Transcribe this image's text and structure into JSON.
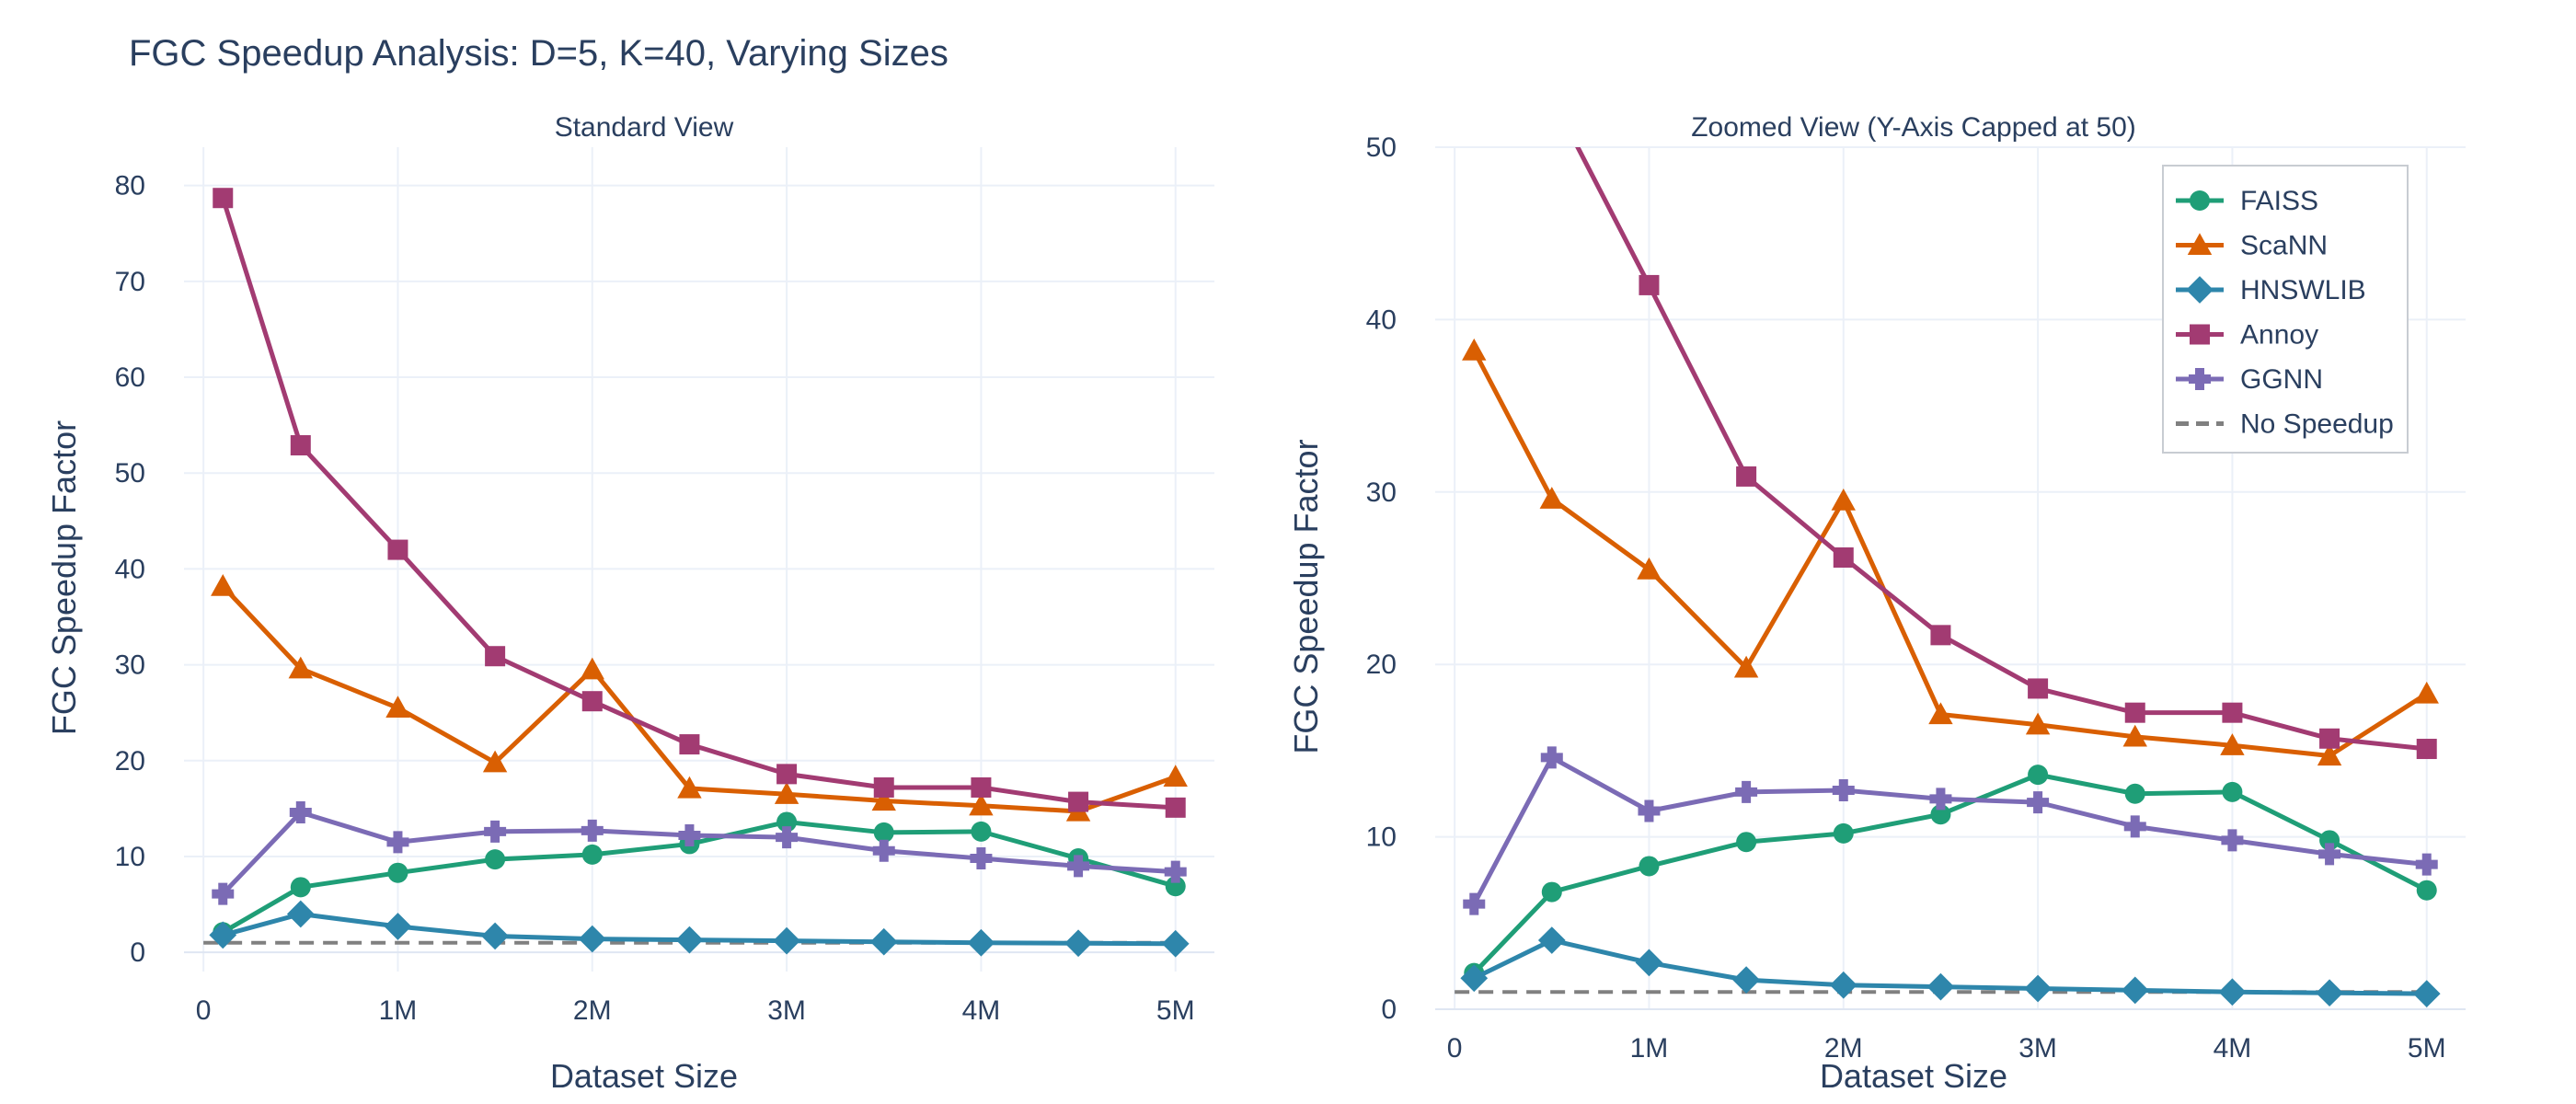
{
  "title": "FGC Speedup Analysis: D=5, K=40, Varying Sizes",
  "chart_data": [
    {
      "type": "line",
      "title": "Standard View",
      "xlabel": "Dataset Size",
      "ylabel": "FGC Speedup Factor",
      "xlim": [
        -0.1,
        5.2
      ],
      "ylim": [
        -2,
        84
      ],
      "xticks": [
        0,
        1,
        2,
        3,
        4,
        5
      ],
      "xtick_labels": [
        "0",
        "1M",
        "2M",
        "3M",
        "4M",
        "5M"
      ],
      "yticks": [
        0,
        10,
        20,
        30,
        40,
        50,
        60,
        70,
        80
      ],
      "ytick_labels": [
        "0",
        "10",
        "20",
        "30",
        "40",
        "50",
        "60",
        "70",
        "80"
      ],
      "legend": false
    },
    {
      "type": "line",
      "title": "Zoomed View (Y-Axis Capped at 50)",
      "xlabel": "Dataset Size",
      "ylabel": "FGC Speedup Factor",
      "xlim": [
        -0.1,
        5.2
      ],
      "ylim": [
        0,
        50
      ],
      "xticks": [
        0,
        1,
        2,
        3,
        4,
        5
      ],
      "xtick_labels": [
        "0",
        "1M",
        "2M",
        "3M",
        "4M",
        "5M"
      ],
      "yticks": [
        0,
        10,
        20,
        30,
        40,
        50
      ],
      "ytick_labels": [
        "0",
        "10",
        "20",
        "30",
        "40",
        "50"
      ],
      "legend": true,
      "legend_position": "top-right"
    }
  ],
  "x": [
    0.1,
    0.5,
    1.0,
    1.5,
    2.0,
    2.5,
    3.0,
    3.5,
    4.0,
    4.5,
    5.0
  ],
  "series": [
    {
      "name": "FAISS",
      "color": "#1f9e77",
      "marker": "circle",
      "values": [
        2.1,
        6.8,
        8.3,
        9.7,
        10.2,
        11.3,
        13.6,
        12.5,
        12.6,
        9.8,
        6.9
      ]
    },
    {
      "name": "ScaNN",
      "color": "#d95f02",
      "marker": "triangle",
      "values": [
        38.2,
        29.6,
        25.5,
        19.8,
        29.5,
        17.1,
        16.5,
        15.8,
        15.3,
        14.7,
        18.3
      ]
    },
    {
      "name": "HNSWLIB",
      "color": "#2e86ab",
      "marker": "diamond",
      "values": [
        1.8,
        4.0,
        2.7,
        1.7,
        1.4,
        1.3,
        1.2,
        1.1,
        1.0,
        0.95,
        0.9
      ]
    },
    {
      "name": "Annoy",
      "color": "#a23b72",
      "marker": "square",
      "values": [
        78.7,
        52.9,
        42.0,
        30.9,
        26.2,
        21.7,
        18.6,
        17.2,
        17.2,
        15.7,
        15.1
      ]
    },
    {
      "name": "GGNN",
      "color": "#7b6bb5",
      "marker": "cross",
      "values": [
        6.1,
        14.6,
        11.5,
        12.6,
        12.7,
        12.2,
        12.0,
        10.6,
        9.8,
        9.0,
        8.4
      ]
    }
  ],
  "baseline": {
    "name": "No Speedup",
    "color": "#808080",
    "value": 1.0
  }
}
